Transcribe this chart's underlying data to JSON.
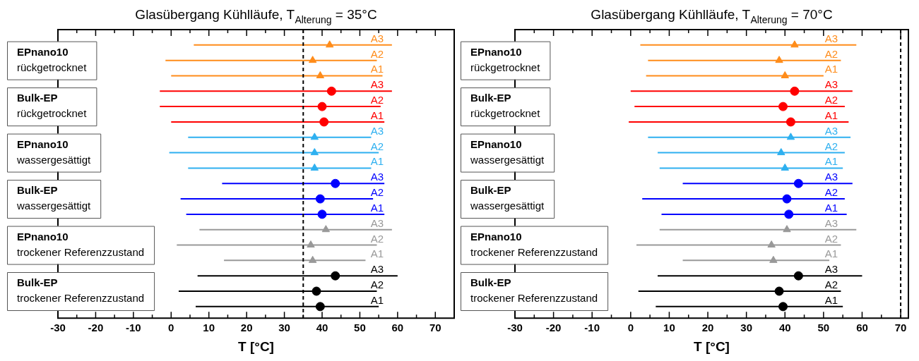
{
  "chart_data": [
    {
      "type": "scatter",
      "orientation": "horizontal",
      "title": "Glasübergang Kühlläufe, T$_{Alterung}$ = 35°C",
      "xlabel": "T [°C]",
      "categories": [
        "A3",
        "A2",
        "A1",
        "A3",
        "A2",
        "A1",
        "A3",
        "A2",
        "A1",
        "A3",
        "A2",
        "A1",
        "A3",
        "A2",
        "A1",
        "A3",
        "A2",
        "A1"
      ],
      "xlim": [
        -30,
        75
      ],
      "xticks": [
        -30,
        {
          "value": -25,
          "label": null
        },
        -20,
        {
          "value": -15,
          "label": null
        },
        -10,
        {
          "value": -5,
          "label": null
        },
        0,
        {
          "value": 5,
          "label": null
        },
        10,
        {
          "value": 15,
          "label": null
        },
        20,
        {
          "value": 25,
          "label": null
        },
        30,
        {
          "value": 35,
          "label": null
        },
        40,
        {
          "value": 45,
          "label": null
        },
        50,
        {
          "value": 55,
          "label": null
        },
        60,
        {
          "value": 65,
          "label": null
        },
        70
      ],
      "ref_lines": [
        {
          "axis": "x",
          "value": 35,
          "color": "#000000",
          "line_style": "dashed"
        }
      ],
      "annotations": [
        "EPnano10\nrückgetrocknet",
        "Bulk-EP\nrückgetrocknet",
        "EPnano10\nwassergesättigt",
        "Bulk-EP\nwassergesättigt",
        "EPnano10\ntrockener Referenzzustand",
        "Bulk-EP\ntrockener Referenzzustand"
      ],
      "series": [
        {
          "color": "#ff8c1a",
          "marker": "triangle",
          "values": [
            42,
            37.5,
            39.5,
            null,
            null,
            null,
            null,
            null,
            null,
            null,
            null,
            null,
            null,
            null,
            null,
            null,
            null,
            null
          ],
          "errors": [
            [
              6,
              58.5
            ],
            [
              -1.5,
              54.5
            ],
            [
              0,
              56
            ],
            null,
            null,
            null,
            null,
            null,
            null,
            null,
            null,
            null,
            null,
            null,
            null,
            null,
            null,
            null
          ]
        },
        {
          "color": "#ff0000",
          "marker": "circle",
          "values": [
            null,
            null,
            null,
            42.5,
            40,
            40.5,
            null,
            null,
            null,
            null,
            null,
            null,
            null,
            null,
            null,
            null,
            null,
            null
          ],
          "errors": [
            null,
            null,
            null,
            [
              -3,
              58.5
            ],
            [
              -3,
              55.5
            ],
            [
              0,
              56.5
            ],
            null,
            null,
            null,
            null,
            null,
            null,
            null,
            null,
            null,
            null,
            null,
            null
          ]
        },
        {
          "color": "#2eb0f0",
          "marker": "triangle",
          "values": [
            null,
            null,
            null,
            null,
            null,
            null,
            38,
            38,
            38,
            null,
            null,
            null,
            null,
            null,
            null,
            null,
            null,
            null
          ],
          "errors": [
            null,
            null,
            null,
            null,
            null,
            null,
            [
              4.5,
              53
            ],
            [
              -0.5,
              55
            ],
            [
              4.5,
              53
            ],
            null,
            null,
            null,
            null,
            null,
            null,
            null,
            null,
            null
          ]
        },
        {
          "color": "#0000ff",
          "marker": "circle",
          "values": [
            null,
            null,
            null,
            null,
            null,
            null,
            null,
            null,
            null,
            43.5,
            39.5,
            40,
            null,
            null,
            null,
            null,
            null,
            null
          ],
          "errors": [
            null,
            null,
            null,
            null,
            null,
            null,
            null,
            null,
            null,
            [
              13.5,
              56.5
            ],
            [
              2.5,
              53.5
            ],
            [
              4,
              56.5
            ],
            null,
            null,
            null,
            null,
            null,
            null
          ]
        },
        {
          "color": "#999999",
          "marker": "triangle",
          "values": [
            null,
            null,
            null,
            null,
            null,
            null,
            null,
            null,
            null,
            null,
            null,
            null,
            41,
            37,
            37.5,
            null,
            null,
            null
          ],
          "errors": [
            null,
            null,
            null,
            null,
            null,
            null,
            null,
            null,
            null,
            null,
            null,
            null,
            [
              7.5,
              58.5
            ],
            [
              1.5,
              54.5
            ],
            [
              14,
              51.5
            ],
            null,
            null,
            null
          ]
        },
        {
          "color": "#000000",
          "marker": "circle",
          "values": [
            null,
            null,
            null,
            null,
            null,
            null,
            null,
            null,
            null,
            null,
            null,
            null,
            null,
            null,
            null,
            43.5,
            38.5,
            39.5
          ],
          "errors": [
            null,
            null,
            null,
            null,
            null,
            null,
            null,
            null,
            null,
            null,
            null,
            null,
            null,
            null,
            null,
            [
              7,
              60
            ],
            [
              2,
              54.5
            ],
            [
              6.5,
              55
            ]
          ]
        }
      ]
    },
    {
      "type": "scatter",
      "orientation": "horizontal",
      "title": "Glasübergang Kühlläufe, T$_{Alterung}$ = 70°C",
      "xlabel": "T [°C]",
      "categories": [
        "A3",
        "A2",
        "A1",
        "A3",
        "A2",
        "A1",
        "A3",
        "A2",
        "A1",
        "A3",
        "A2",
        "A1",
        "A3",
        "A2",
        "A1",
        "A3",
        "A2",
        "A1"
      ],
      "xlim": [
        -30,
        72
      ],
      "xticks": [
        -30,
        {
          "value": -25,
          "label": null
        },
        -20,
        {
          "value": -15,
          "label": null
        },
        -10,
        {
          "value": -5,
          "label": null
        },
        0,
        {
          "value": 5,
          "label": null
        },
        10,
        {
          "value": 15,
          "label": null
        },
        20,
        {
          "value": 25,
          "label": null
        },
        30,
        {
          "value": 35,
          "label": null
        },
        40,
        {
          "value": 45,
          "label": null
        },
        50,
        {
          "value": 55,
          "label": null
        },
        60,
        {
          "value": 65,
          "label": null
        },
        70
      ],
      "ref_lines": [
        {
          "axis": "x",
          "value": 70,
          "color": "#000000",
          "line_style": "dashed"
        }
      ],
      "annotations": [
        "EPnano10\nrückgetrocknet",
        "Bulk-EP\nrückgetrocknet",
        "EPnano10\nwassergesättigt",
        "Bulk-EP\nwassergesättigt",
        "EPnano10\ntrockener Referenzzustand",
        "Bulk-EP\ntrockener Referenzzustand"
      ],
      "series": [
        {
          "color": "#ff8c1a",
          "marker": "triangle",
          "values": [
            42.5,
            38.5,
            40,
            null,
            null,
            null,
            null,
            null,
            null,
            null,
            null,
            null,
            null,
            null,
            null,
            null,
            null,
            null
          ],
          "errors": [
            [
              2.5,
              58.5
            ],
            [
              4.5,
              54.5
            ],
            [
              4,
              50
            ],
            null,
            null,
            null,
            null,
            null,
            null,
            null,
            null,
            null,
            null,
            null,
            null,
            null,
            null,
            null
          ]
        },
        {
          "color": "#ff0000",
          "marker": "circle",
          "values": [
            null,
            null,
            null,
            42.5,
            39.5,
            41.5,
            null,
            null,
            null,
            null,
            null,
            null,
            null,
            null,
            null,
            null,
            null,
            null
          ],
          "errors": [
            null,
            null,
            null,
            [
              0,
              57.5
            ],
            [
              1,
              55.5
            ],
            [
              -0.5,
              56.5
            ],
            null,
            null,
            null,
            null,
            null,
            null,
            null,
            null,
            null,
            null,
            null,
            null
          ]
        },
        {
          "color": "#2eb0f0",
          "marker": "triangle",
          "values": [
            null,
            null,
            null,
            null,
            null,
            null,
            41.5,
            39,
            40,
            null,
            null,
            null,
            null,
            null,
            null,
            null,
            null,
            null
          ],
          "errors": [
            null,
            null,
            null,
            null,
            null,
            null,
            [
              4.5,
              57
            ],
            [
              7,
              55.5
            ],
            [
              7.5,
              55
            ],
            null,
            null,
            null,
            null,
            null,
            null,
            null,
            null,
            null
          ]
        },
        {
          "color": "#0000ff",
          "marker": "circle",
          "values": [
            null,
            null,
            null,
            null,
            null,
            null,
            null,
            null,
            null,
            43.5,
            40.5,
            41,
            null,
            null,
            null,
            null,
            null,
            null
          ],
          "errors": [
            null,
            null,
            null,
            null,
            null,
            null,
            null,
            null,
            null,
            [
              13.5,
              57.5
            ],
            [
              3,
              55.5
            ],
            [
              8,
              56
            ],
            null,
            null,
            null,
            null,
            null,
            null
          ]
        },
        {
          "color": "#999999",
          "marker": "triangle",
          "values": [
            null,
            null,
            null,
            null,
            null,
            null,
            null,
            null,
            null,
            null,
            null,
            null,
            40.5,
            36.5,
            37,
            null,
            null,
            null
          ],
          "errors": [
            null,
            null,
            null,
            null,
            null,
            null,
            null,
            null,
            null,
            null,
            null,
            null,
            [
              7.5,
              58.5
            ],
            [
              1.5,
              54.5
            ],
            [
              13.5,
              51.5
            ],
            null,
            null,
            null
          ]
        },
        {
          "color": "#000000",
          "marker": "circle",
          "values": [
            null,
            null,
            null,
            null,
            null,
            null,
            null,
            null,
            null,
            null,
            null,
            null,
            null,
            null,
            null,
            43.5,
            38.5,
            39.5
          ],
          "errors": [
            null,
            null,
            null,
            null,
            null,
            null,
            null,
            null,
            null,
            null,
            null,
            null,
            null,
            null,
            null,
            [
              7,
              60
            ],
            [
              2,
              54.5
            ],
            [
              6.5,
              55
            ]
          ]
        }
      ]
    }
  ]
}
